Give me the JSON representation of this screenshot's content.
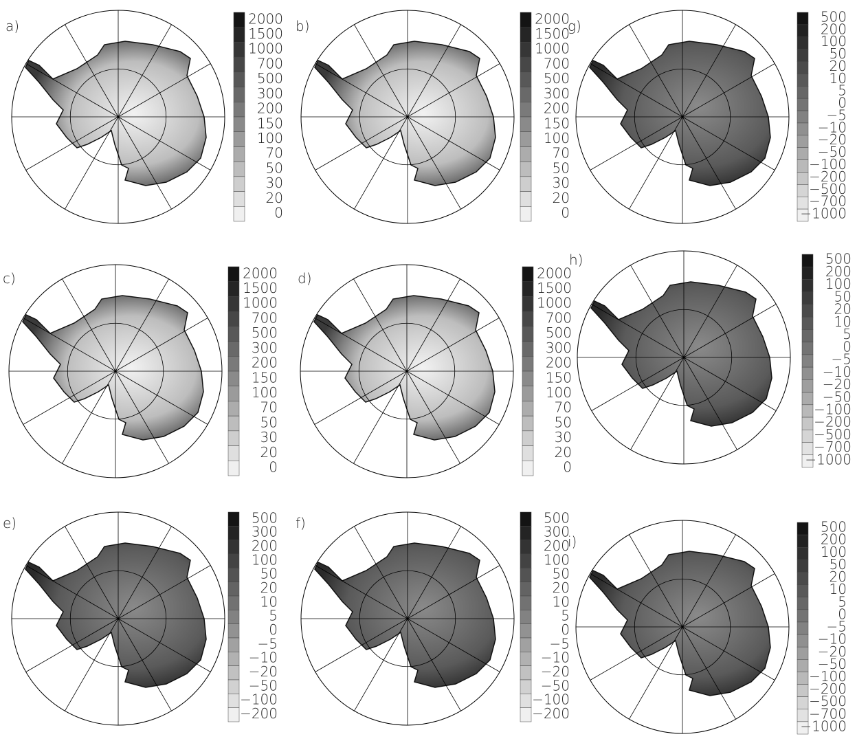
{
  "panels": [
    {
      "label": "a)",
      "colorbar": [
        "2000",
        "1500",
        "1000",
        "700",
        "500",
        "300",
        "200",
        "150",
        "100",
        "70",
        "50",
        "30",
        "20",
        "0"
      ]
    },
    {
      "label": "b)",
      "colorbar": [
        "2000",
        "1500",
        "1000",
        "700",
        "500",
        "300",
        "200",
        "150",
        "100",
        "70",
        "50",
        "30",
        "20",
        "0"
      ]
    },
    {
      "label": "g)",
      "colorbar": [
        "500",
        "200",
        "100",
        "50",
        "20",
        "10",
        "5",
        "0",
        "−5",
        "−10",
        "−20",
        "−50",
        "−100",
        "−200",
        "−500",
        "−700",
        "−1000"
      ]
    },
    {
      "label": "c)",
      "colorbar": [
        "2000",
        "1500",
        "1000",
        "700",
        "500",
        "300",
        "200",
        "150",
        "100",
        "70",
        "50",
        "30",
        "20",
        "0"
      ]
    },
    {
      "label": "d)",
      "colorbar": [
        "2000",
        "1500",
        "1000",
        "700",
        "500",
        "300",
        "200",
        "150",
        "100",
        "70",
        "50",
        "30",
        "20",
        "0"
      ]
    },
    {
      "label": "h)",
      "colorbar": [
        "500",
        "200",
        "100",
        "50",
        "20",
        "10",
        "5",
        "0",
        "−5",
        "−10",
        "−20",
        "−50",
        "−100",
        "−200",
        "−500",
        "−700",
        "−1000"
      ]
    },
    {
      "label": "e)",
      "colorbar": [
        "500",
        "300",
        "200",
        "100",
        "50",
        "20",
        "10",
        "5",
        "0",
        "−5",
        "−10",
        "−20",
        "−50",
        "−100",
        "−200"
      ]
    },
    {
      "label": "f)",
      "colorbar": [
        "500",
        "300",
        "200",
        "100",
        "50",
        "20",
        "10",
        "5",
        "0",
        "−5",
        "−10",
        "−20",
        "−50",
        "−100",
        "−200"
      ]
    },
    {
      "label": "i)",
      "colorbar": [
        "500",
        "200",
        "100",
        "50",
        "20",
        "10",
        "5",
        "0",
        "−5",
        "−10",
        "−20",
        "−50",
        "−100",
        "−200",
        "−500",
        "−700",
        "−1000"
      ]
    }
  ]
}
